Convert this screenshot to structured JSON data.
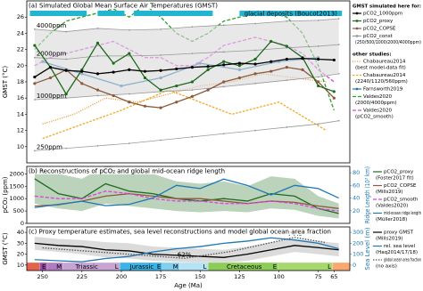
{
  "chart_data": [
    {
      "type": "line",
      "title": "(a) Simulated Global Mean Surface Air Temperatures (GMST)",
      "ylabel": "GMST (°C)",
      "xlim": [
        260,
        55
      ],
      "ylim": [
        8,
        28
      ],
      "yticks": [
        10,
        12,
        14,
        16,
        18,
        20,
        22,
        24,
        26
      ],
      "glacial": {
        "label": "glacial deposits (Boucot2013)",
        "color": "#22b5cf",
        "ranges": [
          [
            258,
            222
          ],
          [
            215,
            198
          ],
          [
            192,
            142
          ],
          [
            125,
            60
          ]
        ]
      },
      "groups": [
        {
          "title": "GMST simulated here for:",
          "series": [
            {
              "name": "pCO2_1000ppm",
              "color": "#000000",
              "marker": true,
              "x": [
                255,
                245,
                235,
                225,
                215,
                205,
                195,
                185,
                175,
                165,
                155,
                145,
                135,
                125,
                115,
                105,
                95,
                85,
                75,
                65
              ],
              "values": [
                18.6,
                19.8,
                19.4,
                19.3,
                19.0,
                19.2,
                19.5,
                19.3,
                19.4,
                19.6,
                19.8,
                19.9,
                20.1,
                20.3,
                20.2,
                20.5,
                20.8,
                20.9,
                20.8,
                20.7
              ]
            },
            {
              "name": "pCO2_proxy",
              "color": "#1e6b1e",
              "marker": true,
              "x": [
                255,
                245,
                235,
                225,
                215,
                205,
                195,
                185,
                175,
                165,
                155,
                145,
                135,
                125,
                115,
                105,
                95,
                85,
                75,
                65
              ],
              "values": [
                22.5,
                19.8,
                16.5,
                19.5,
                22.8,
                20.3,
                21.5,
                18.5,
                17.0,
                17.5,
                18.0,
                19.5,
                20.5,
                20.0,
                20.8,
                23.0,
                22.4,
                21.0,
                17.5,
                16.8
              ]
            },
            {
              "name": "pCO2_COPSE",
              "color": "#8b5a3c",
              "marker": true,
              "x": [
                255,
                245,
                235,
                225,
                215,
                205,
                195,
                185,
                175,
                165,
                155,
                145,
                135,
                125,
                115,
                105,
                95,
                85,
                75,
                65
              ],
              "values": [
                17.8,
                18.5,
                19.5,
                17.8,
                17.0,
                16.3,
                15.5,
                15.0,
                14.8,
                15.5,
                16.2,
                17.0,
                18.0,
                18.5,
                19.0,
                19.3,
                19.8,
                19.5,
                18.0,
                16.0
              ]
            },
            {
              "name": "pCO2_const",
              "note": "(250/500/1000/2000/4000ppm)",
              "color": "#999999",
              "marker": true,
              "x": [
                255,
                235,
                215,
                195,
                175,
                155,
                135,
                115,
                95,
                75,
                62
              ],
              "lines": [
                {
                  "label": "4000ppm",
                  "values": [
                    24.5,
                    24.2,
                    24.6,
                    24.4,
                    24.5,
                    24.8,
                    25.0,
                    25.2,
                    25.5,
                    25.6,
                    25.8
                  ]
                },
                {
                  "label": "2000ppm",
                  "values": [
                    21.0,
                    20.8,
                    21.2,
                    21.2,
                    21.3,
                    21.5,
                    21.7,
                    21.9,
                    22.2,
                    22.4,
                    22.6
                  ]
                },
                {
                  "label": "1000ppm",
                  "values": [
                    15.8,
                    16.0,
                    16.3,
                    16.5,
                    16.8,
                    17.0,
                    17.4,
                    17.8,
                    18.2,
                    18.6,
                    19.0
                  ]
                },
                {
                  "label": "250ppm",
                  "values": [
                    9.5,
                    9.8,
                    10.1,
                    10.4,
                    10.8,
                    11.2,
                    11.6,
                    12.0,
                    12.4,
                    12.8,
                    13.2
                  ]
                }
              ]
            }
          ]
        },
        {
          "title": "other studies:",
          "series": [
            {
              "name": "Chabaureau2014",
              "note": "(best model-data fit)",
              "color": "#f0902a",
              "dash": "1,1.5",
              "x": [
                250,
                230,
                210,
                190,
                170,
                150,
                130,
                110,
                90,
                70
              ],
              "values": [
                12.8,
                14.0,
                16.0,
                15.5,
                16.5,
                17.5,
                18.0,
                19.0,
                18.5,
                18.0
              ]
            },
            {
              "name": "Chabaureau2014",
              "note": "(2240/1120/560ppm)",
              "color": "#f5a623",
              "dash": "2.5,1.5",
              "x": [
                250,
                200,
                170,
                130,
                100,
                70
              ],
              "values": [
                11.0,
                14.5,
                17.0,
                14.0,
                15.5,
                12.0
              ]
            },
            {
              "name": "Farnsworth2019",
              "color": "#1f77b4",
              "marker": true,
              "x": [
                250,
                225,
                200,
                175,
                150,
                125,
                100,
                75
              ],
              "values": [
                20.5,
                19.0,
                17.5,
                18.5,
                20.3,
                19.5,
                20.5,
                21.0
              ]
            },
            {
              "name": "Valdes2020",
              "note": "(2000/4000ppm)",
              "color": "#2ca02c",
              "dash": "4,2",
              "x": [
                255,
                245,
                235,
                225,
                215,
                205,
                195,
                185,
                175,
                165,
                155,
                145,
                135,
                125,
                115,
                105,
                95,
                85,
                75,
                65
              ],
              "values": [
                22.0,
                24.0,
                25.5,
                26.0,
                26.5,
                27.0,
                26.0,
                27.5,
                26.0,
                24.0,
                23.0,
                24.0,
                25.5,
                26.0,
                26.5,
                26.5,
                26.0,
                24.0,
                20.0,
                14.5
              ]
            },
            {
              "name": "Valdes2020",
              "note": "(pCO2_smooth)",
              "color": "#e040e0",
              "dash": "4,2",
              "x": [
                255,
                245,
                235,
                225,
                215,
                205,
                195,
                185,
                175,
                165,
                155,
                145,
                135,
                125,
                115,
                105,
                95,
                85,
                75,
                65
              ],
              "values": [
                20.0,
                21.0,
                21.5,
                22.0,
                22.5,
                23.0,
                22.0,
                21.0,
                21.0,
                20.0,
                20.0,
                21.0,
                22.5,
                23.0,
                23.5,
                23.0,
                22.5,
                21.5,
                19.5,
                18.0
              ]
            }
          ]
        }
      ]
    },
    {
      "type": "line",
      "title": "(b) Reconstructions of pCO₂ and global mid-ocean ridge length",
      "ylabel": "pCO₂ (ppm)",
      "y2label": "Ridge Length (10³ km)",
      "y2_color": "#1f77b4",
      "xlim": [
        260,
        55
      ],
      "ylim": [
        0,
        2300
      ],
      "yticks": [
        0,
        500,
        1000,
        1500,
        2000
      ],
      "y2lim": [
        0,
        90
      ],
      "y2ticks": [
        20,
        40,
        60,
        80
      ],
      "series": [
        {
          "name": "pCO2_proxy",
          "note": "(Foster2017 fit)",
          "color": "#1e6b1e",
          "x": [
            255,
            240,
            225,
            210,
            195,
            180,
            165,
            150,
            135,
            120,
            105,
            90,
            75,
            62
          ],
          "values": [
            1800,
            1200,
            1000,
            1600,
            1300,
            1200,
            1000,
            900,
            1000,
            900,
            1200,
            1100,
            600,
            400
          ],
          "range_low": [
            800,
            600,
            500,
            800,
            700,
            600,
            500,
            450,
            500,
            450,
            600,
            550,
            300,
            200
          ],
          "range_high": [
            2300,
            2000,
            1800,
            2300,
            2200,
            2000,
            1700,
            1600,
            1700,
            1500,
            1900,
            1800,
            1100,
            800
          ]
        },
        {
          "name": "pCO2_COPSE",
          "note": "(Mills2019)",
          "color": "#8b5a3c",
          "x": [
            255,
            240,
            225,
            210,
            195,
            180,
            165,
            150,
            135,
            120,
            105,
            90,
            75,
            62
          ],
          "values": [
            700,
            750,
            900,
            1100,
            1200,
            1100,
            1000,
            1000,
            900,
            800,
            900,
            850,
            700,
            600
          ]
        },
        {
          "name": "pCO2_smooth",
          "note": "(Valdes2020)",
          "color": "#e040e0",
          "dash": "4,2",
          "x": [
            255,
            240,
            225,
            210,
            195,
            180,
            165,
            150,
            135,
            120,
            105,
            90,
            75,
            62
          ],
          "values": [
            1100,
            1000,
            1000,
            1300,
            1200,
            1000,
            900,
            900,
            800,
            800,
            900,
            800,
            600,
            500
          ]
        },
        {
          "name": "mid-ocean ridge length",
          "note": "(Müller2018)",
          "color": "#1f77b4",
          "axis": "y2",
          "x": [
            255,
            240,
            225,
            210,
            195,
            180,
            165,
            150,
            135,
            120,
            105,
            90,
            75,
            62
          ],
          "values": [
            25,
            30,
            35,
            28,
            30,
            40,
            60,
            55,
            70,
            60,
            45,
            60,
            55,
            40
          ]
        }
      ]
    },
    {
      "type": "line",
      "title": "(c) Proxy temperature estimates, sea level reconstructions and model global ocean area fraction",
      "ylabel": "GMST (°C)",
      "y2label": "Sea Level (m)",
      "y2_color": "#1f77b4",
      "xlabel": "Age (Ma)",
      "xlim": [
        260,
        55
      ],
      "xticks": [
        250,
        225,
        200,
        175,
        150,
        125,
        100,
        75,
        65
      ],
      "ylim": [
        5,
        45
      ],
      "yticks": [
        10,
        20,
        30,
        40
      ],
      "y2lim": [
        -50,
        350
      ],
      "y2ticks": [
        0,
        100,
        200,
        300
      ],
      "series": [
        {
          "name": "proxy GMST",
          "note": "(Mills2019)",
          "color": "#000000",
          "x": [
            255,
            240,
            225,
            210,
            195,
            180,
            165,
            150,
            135,
            120,
            105,
            90,
            75,
            62
          ],
          "values": [
            30,
            28,
            27,
            24,
            23,
            20,
            19,
            18,
            17,
            20,
            24,
            28,
            26,
            24
          ],
          "range_low": [
            24,
            22,
            20,
            17,
            16,
            14,
            13,
            12,
            12,
            14,
            18,
            22,
            20,
            18
          ],
          "range_high": [
            36,
            34,
            33,
            31,
            30,
            27,
            26,
            25,
            24,
            27,
            31,
            34,
            32,
            30
          ]
        },
        {
          "name": "rel. sea level",
          "note": "(Haq2014/17/18)",
          "color": "#1f77b4",
          "axis": "y2",
          "x": [
            255,
            240,
            225,
            210,
            195,
            180,
            165,
            150,
            135,
            120,
            105,
            90,
            75,
            62
          ],
          "values": [
            50,
            40,
            30,
            60,
            80,
            120,
            150,
            170,
            200,
            220,
            250,
            230,
            200,
            150
          ]
        },
        {
          "name": "global ocean area fraction",
          "note": "(no axis)",
          "color": "#555555",
          "dash": "1.5,1.5",
          "ylim": [
            55,
            80
          ],
          "x": [
            250,
            220,
            190,
            160,
            130,
            100,
            90,
            70
          ],
          "values": [
            68,
            66,
            64,
            62,
            66,
            72,
            74,
            71
          ],
          "value_labels": [
            null,
            null,
            null,
            "62%",
            null,
            null,
            "74%",
            null
          ]
        }
      ],
      "timescale": {
        "epochs": [
          {
            "start": 260,
            "end": 252,
            "color": "#e5634a"
          },
          {
            "label": "E",
            "start": 252,
            "end": 247,
            "color": "#9a4fa4"
          },
          {
            "label": "M",
            "start": 247,
            "end": 237,
            "color": "#b17cc1"
          },
          {
            "label": "L",
            "start": 237,
            "end": 201,
            "color": "#c8a4d4"
          },
          {
            "label": "E",
            "start": 201,
            "end": 174,
            "color": "#3bb3e6"
          },
          {
            "label": "M",
            "start": 174,
            "end": 163,
            "color": "#80cfee"
          },
          {
            "label": "L",
            "start": 163,
            "end": 145,
            "color": "#b3e3f5"
          },
          {
            "label": "E",
            "start": 145,
            "end": 100.5,
            "color": "#8ccd57"
          },
          {
            "label": "L",
            "start": 100.5,
            "end": 66,
            "color": "#a6d86e"
          },
          {
            "start": 66,
            "end": 55,
            "color": "#f9a870"
          }
        ],
        "periods": [
          {
            "label": "Triassic",
            "label_age": 222
          },
          {
            "label": "Jurassic",
            "label_age": 187
          },
          {
            "label": "Cretaceous",
            "label_age": 122
          }
        ]
      }
    }
  ]
}
